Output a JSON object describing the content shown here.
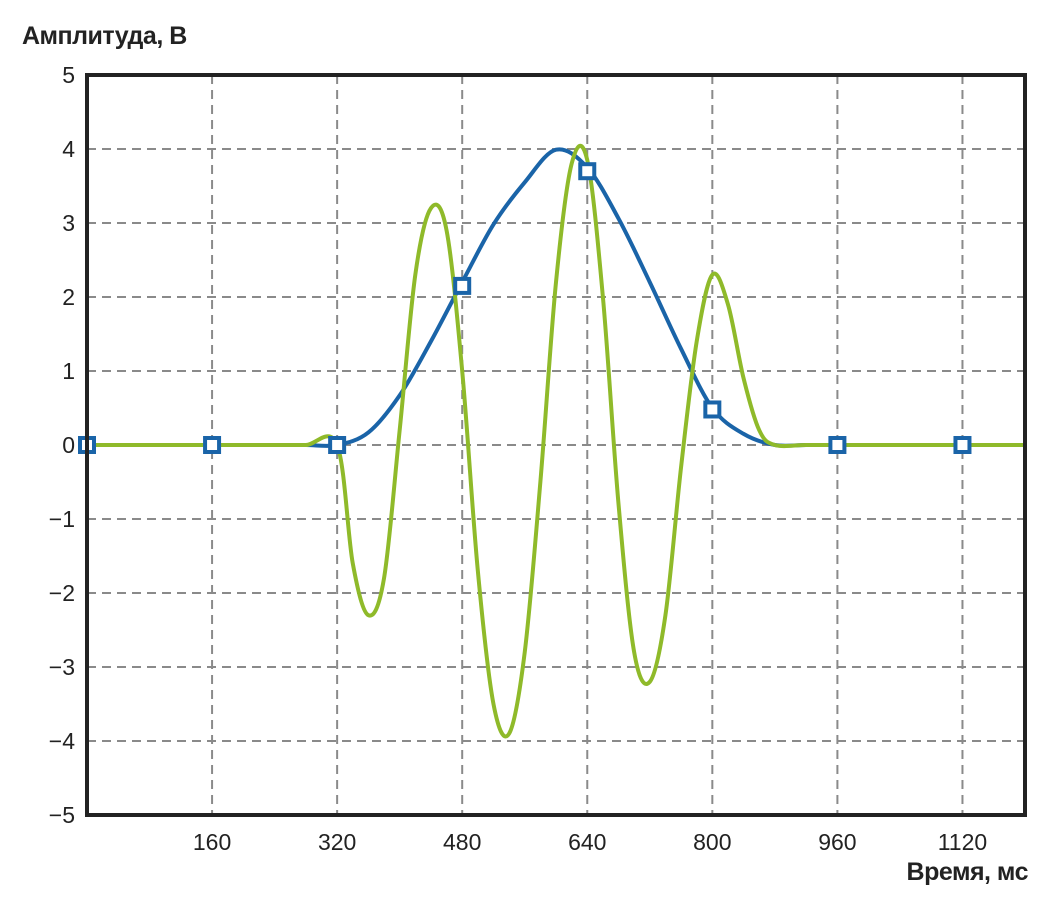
{
  "chart_data": {
    "type": "line",
    "ylabel": "Амплитуда, В",
    "xlabel": "Время, мс",
    "xlim": [
      0,
      1200
    ],
    "ylim": [
      -5,
      5
    ],
    "x_ticks": [
      160,
      320,
      480,
      640,
      800,
      960,
      1120
    ],
    "y_ticks": [
      5,
      4,
      3,
      2,
      1,
      0,
      -1,
      -2,
      -3,
      -4,
      -5
    ],
    "y_tick_labels": [
      "5",
      "4",
      "3",
      "2",
      "1",
      "0",
      "−1",
      "−2",
      "−3",
      "−4",
      "−5"
    ],
    "grid": true,
    "series": [
      {
        "color": "#1a64a8",
        "marker": "square",
        "x": [
          0,
          40,
          80,
          120,
          160,
          200,
          240,
          280,
          320,
          360,
          400,
          440,
          480,
          520,
          560,
          600,
          640,
          680,
          720,
          760,
          800,
          840,
          880,
          920,
          960,
          1000,
          1040,
          1080,
          1120,
          1160,
          1200
        ],
        "y": [
          0,
          0,
          0,
          0,
          0,
          0,
          0,
          0,
          0,
          0.17,
          0.67,
          1.4,
          2.2,
          2.98,
          3.55,
          3.99,
          3.75,
          3.06,
          2.2,
          1.3,
          0.5,
          0.15,
          0,
          0,
          0,
          0,
          0,
          0,
          0,
          0,
          0
        ],
        "marker_x": [
          0,
          160,
          320,
          480,
          640,
          800,
          960,
          1120
        ],
        "marker_y": [
          0,
          0,
          0,
          2.15,
          3.7,
          0.48,
          0,
          0
        ]
      },
      {
        "color": "#8fba2a",
        "marker": "none",
        "x": [
          0,
          40,
          80,
          120,
          160,
          200,
          240,
          280,
          320,
          340,
          360,
          380,
          400,
          420,
          440,
          460,
          480,
          500,
          520,
          540,
          560,
          580,
          600,
          620,
          640,
          660,
          680,
          700,
          720,
          740,
          760,
          780,
          800,
          820,
          840,
          860,
          880,
          920,
          960,
          1000,
          1040,
          1080,
          1120,
          1160,
          1200
        ],
        "y": [
          0,
          0,
          0,
          0,
          0,
          0,
          0,
          0,
          0,
          -1.6,
          -2.3,
          -1.8,
          0.2,
          2.3,
          3.2,
          2.9,
          1.0,
          -1.7,
          -3.5,
          -3.9,
          -2.8,
          -0.5,
          2.2,
          3.8,
          3.85,
          2.0,
          -0.8,
          -2.8,
          -3.2,
          -2.3,
          -0.3,
          1.4,
          2.3,
          1.9,
          0.9,
          0.2,
          0,
          0,
          0,
          0,
          0,
          0,
          0,
          0,
          0
        ]
      }
    ]
  }
}
